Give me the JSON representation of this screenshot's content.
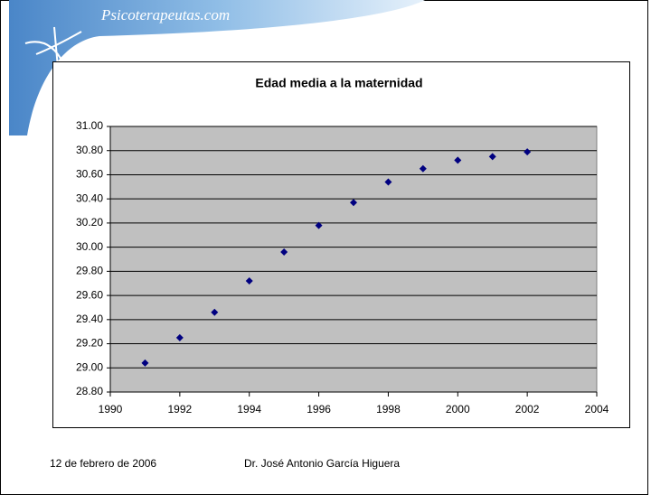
{
  "header": {
    "logo_text": "Psicoterapeutas.com"
  },
  "chart_data": {
    "type": "scatter",
    "title": "Edad media a la maternidad",
    "x": [
      1991,
      1992,
      1993,
      1994,
      1995,
      1996,
      1997,
      1998,
      1999,
      2000,
      2001,
      2002
    ],
    "values": [
      29.04,
      29.25,
      29.46,
      29.72,
      29.96,
      30.18,
      30.37,
      30.54,
      30.65,
      30.72,
      30.75,
      30.79
    ],
    "color": "#000080",
    "xlim": [
      1990,
      2004
    ],
    "xticks": [
      1990,
      1992,
      1994,
      1996,
      1998,
      2000,
      2002,
      2004
    ],
    "ylim": [
      28.8,
      31
    ],
    "yticks": [
      {
        "value": 28.8,
        "label": "28.80"
      },
      {
        "value": 29,
        "label": "29.00"
      },
      {
        "value": 29.2,
        "label": "29.20"
      },
      {
        "value": 29.4,
        "label": "29.40"
      },
      {
        "value": 29.6,
        "label": "29.60"
      },
      {
        "value": 29.8,
        "label": "29.80"
      },
      {
        "value": 30,
        "label": "30.00"
      },
      {
        "value": 30.2,
        "label": "30.20"
      },
      {
        "value": 30.4,
        "label": "30.40"
      },
      {
        "value": 30.6,
        "label": "30.60"
      },
      {
        "value": 30.8,
        "label": "30.80"
      },
      {
        "value": 31,
        "label": "31.00"
      }
    ],
    "grid": true
  },
  "footer": {
    "date": "12 de febrero de 2006",
    "author": "Dr. José Antonio García Higuera"
  }
}
